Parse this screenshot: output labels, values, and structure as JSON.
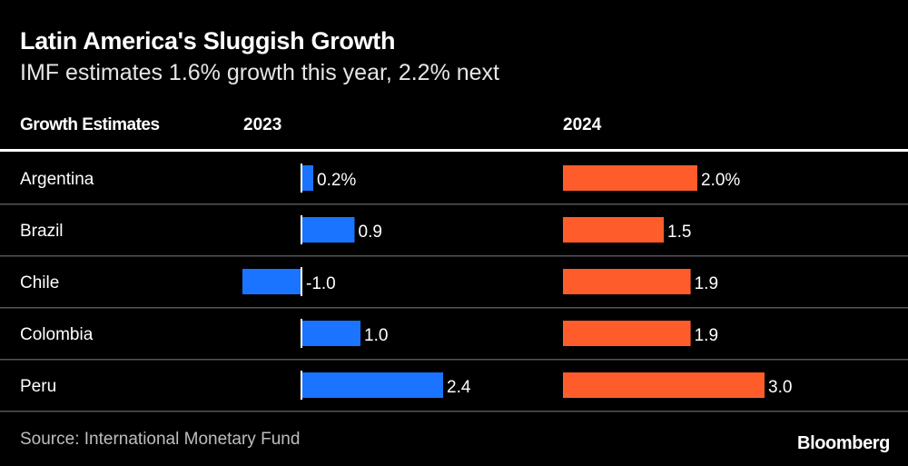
{
  "title": "Latin America's Sluggish Growth",
  "subtitle": "IMF estimates 1.6% growth this year, 2.2% next",
  "source": "Source: International Monetary Fund",
  "brand": "Bloomberg",
  "colors": {
    "2023": "#1a74ff",
    "2024": "#ff5c2b",
    "background": "#000000"
  },
  "chart_data": {
    "type": "bar",
    "row_header": "Growth Estimates",
    "categories": [
      "Argentina",
      "Brazil",
      "Chile",
      "Colombia",
      "Peru"
    ],
    "series": [
      {
        "name": "2023",
        "values": [
          0.2,
          0.9,
          -1.0,
          1.0,
          2.4
        ],
        "labels": [
          "0.2%",
          "0.9",
          "-1.0",
          "1.0",
          "2.4"
        ]
      },
      {
        "name": "2024",
        "values": [
          2.0,
          1.5,
          1.9,
          1.9,
          3.0
        ],
        "labels": [
          "2.0%",
          "1.5",
          "1.9",
          "1.9",
          "3.0"
        ]
      }
    ],
    "unit": "%",
    "orientation": "horizontal"
  }
}
